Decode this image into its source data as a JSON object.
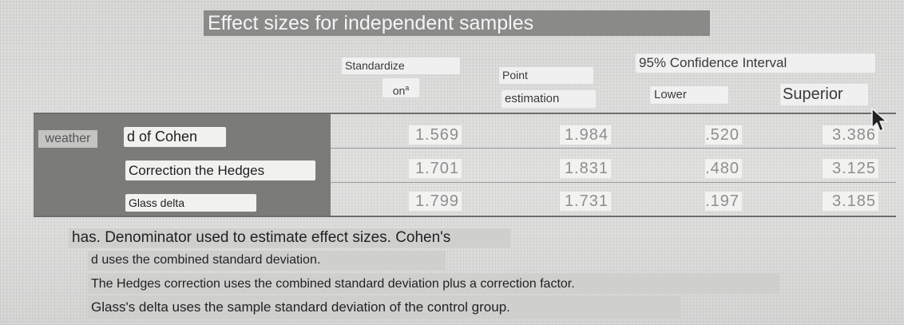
{
  "title": "Effect sizes for independent samples",
  "headers": {
    "standardizer_line1": "Standardize",
    "standardizer_line2": "on",
    "standardizer_sup": "a",
    "point_line1": "Point",
    "point_line2": "estimation",
    "ci": "95% Confidence Interval",
    "lower": "Lower",
    "upper": "Superior"
  },
  "variable": "weather",
  "rows": [
    {
      "label": "d of Cohen",
      "standardizer": "1.569",
      "point": "1.984",
      "lower": ".520",
      "upper": "3.386"
    },
    {
      "label": "Correction the Hedges",
      "standardizer": "1.701",
      "point": "1.831",
      "lower": ".480",
      "upper": "3.125"
    },
    {
      "label": "Glass delta",
      "standardizer": "1.799",
      "point": "1.731",
      "lower": ".197",
      "upper": "3.185"
    }
  ],
  "footnotes": [
    "has. Denominator used to estimate effect sizes. Cohen's",
    "d uses the combined standard deviation.",
    "The Hedges correction uses the combined standard deviation plus a correction factor.",
    "Glass's delta uses the sample standard deviation of the control group."
  ]
}
